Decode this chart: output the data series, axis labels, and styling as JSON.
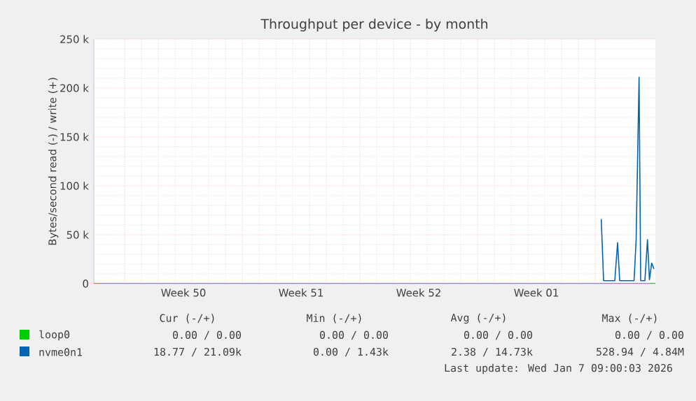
{
  "chart_data": {
    "type": "line",
    "title": "Throughput per device - by month",
    "ylabel": "Bytes/second read (-) / write (+)",
    "xlim": [
      "2025-12-06T04:00",
      "2026-01-08T14:00"
    ],
    "xticks": [
      {
        "value": "2025-12-08",
        "label": null
      },
      {
        "value": "2025-12-11T12:00",
        "label": "Week 50"
      },
      {
        "value": "2025-12-15",
        "label": null
      },
      {
        "value": "2025-12-18T12:00",
        "label": "Week 51"
      },
      {
        "value": "2025-12-22",
        "label": null
      },
      {
        "value": "2025-12-25T12:00",
        "label": "Week 52"
      },
      {
        "value": "2025-12-29",
        "label": null
      },
      {
        "value": "2026-01-01T12:00",
        "label": "Week 01"
      },
      {
        "value": "2026-01-05",
        "label": null
      }
    ],
    "ylim": [
      0,
      250000
    ],
    "yticks": [
      {
        "value": 0,
        "label": "0"
      },
      {
        "value": 50000,
        "label": "50 k"
      },
      {
        "value": 100000,
        "label": "100 k"
      },
      {
        "value": 150000,
        "label": "150 k"
      },
      {
        "value": 200000,
        "label": "200 k"
      },
      {
        "value": 250000,
        "label": "250 k"
      }
    ],
    "grid": true,
    "legend": "bottom",
    "series": [
      {
        "name": "loop0",
        "color": "#00cc00",
        "x": [
          "2025-12-06T04:00",
          "2026-01-08T14:00"
        ],
        "values": [
          0,
          0
        ]
      },
      {
        "name": "nvme0n1",
        "color": "#0066b3",
        "x": [
          "2026-01-05T08:40",
          "2026-01-05T12:00",
          "2026-01-06T04:00",
          "2026-01-06T08:00",
          "2026-01-06T11:00",
          "2026-01-07T07:30",
          "2026-01-07T10:30",
          "2026-01-07T14:40",
          "2026-01-07T17:00",
          "2026-01-07T23:00",
          "2026-01-08T02:40",
          "2026-01-08T05:30",
          "2026-01-08T08:40",
          "2026-01-08T12:00"
        ],
        "values": [
          66000,
          3000,
          3000,
          42000,
          3000,
          3000,
          45000,
          211000,
          3000,
          3000,
          45000,
          4000,
          21000,
          15000
        ]
      }
    ],
    "annotations": [
      "Cur (-/+)",
      "Min (-/+)",
      "Avg (-/+)",
      "Max (-/+)",
      "0.00 /  0.00",
      "0.00 /  0.00",
      "0.00 /  0.00",
      "0.00 /  0.00",
      "18.77 / 21.09k",
      "0.00 /  1.43k",
      "2.38 / 14.73k",
      "528.94 /  4.84M",
      "Last update: Wed Jan  7 09:00:03 2026"
    ]
  }
}
